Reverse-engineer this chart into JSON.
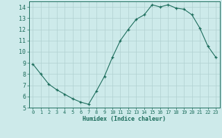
{
  "x": [
    0,
    1,
    2,
    3,
    4,
    5,
    6,
    7,
    8,
    9,
    10,
    11,
    12,
    13,
    14,
    15,
    16,
    17,
    18,
    19,
    20,
    21,
    22,
    23
  ],
  "y": [
    8.9,
    8.0,
    7.1,
    6.6,
    6.2,
    5.8,
    5.5,
    5.3,
    6.5,
    7.8,
    9.5,
    11.0,
    12.0,
    12.9,
    13.3,
    14.2,
    14.0,
    14.2,
    13.9,
    13.8,
    13.3,
    12.1,
    10.5,
    9.5
  ],
  "xlim": [
    -0.5,
    23.5
  ],
  "ylim": [
    5,
    14.5
  ],
  "yticks": [
    5,
    6,
    7,
    8,
    9,
    10,
    11,
    12,
    13,
    14
  ],
  "xticks": [
    0,
    1,
    2,
    3,
    4,
    5,
    6,
    7,
    8,
    9,
    10,
    11,
    12,
    13,
    14,
    15,
    16,
    17,
    18,
    19,
    20,
    21,
    22,
    23
  ],
  "xlabel": "Humidex (Indice chaleur)",
  "line_color": "#1a6b5a",
  "marker_color": "#1a6b5a",
  "bg_color": "#cdeaea",
  "grid_color": "#b0d0d0",
  "tick_color": "#1a6b5a",
  "label_color": "#1a6b5a"
}
